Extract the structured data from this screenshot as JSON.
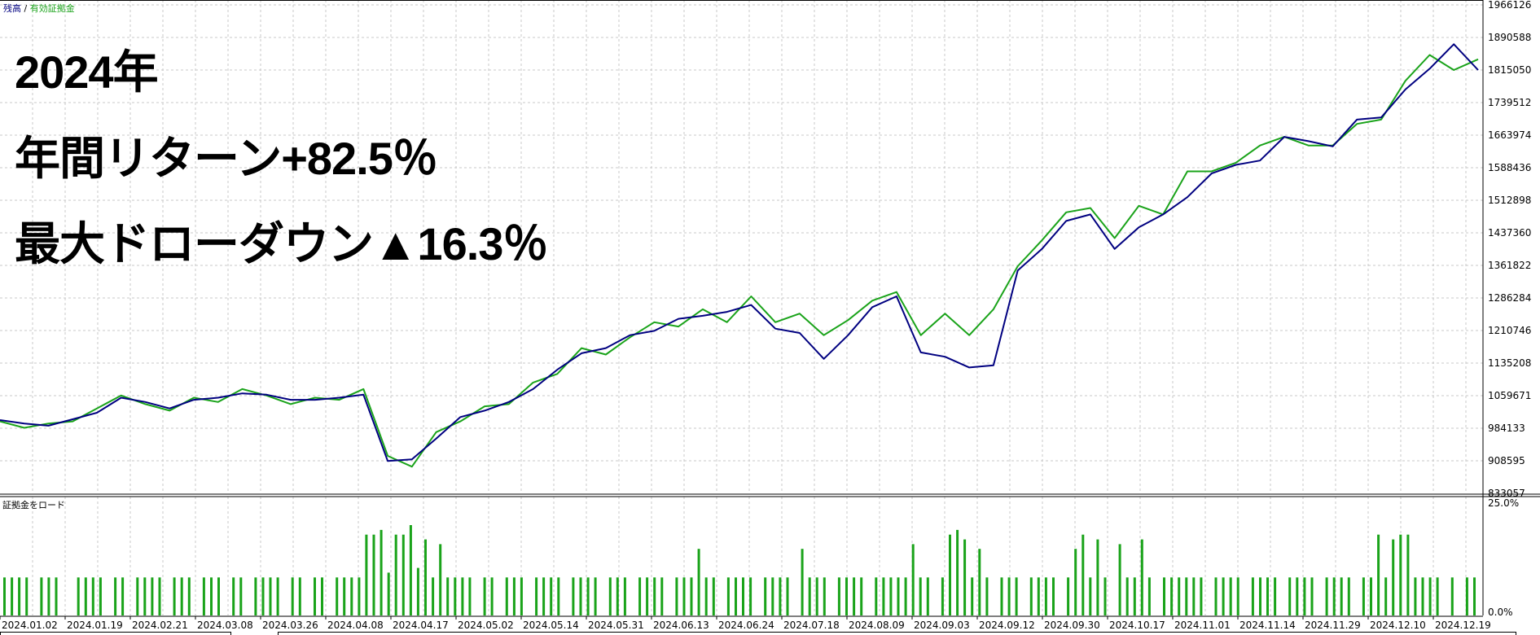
{
  "overlay": {
    "year": "2024年",
    "annual_return": "年間リターン+82.5％",
    "max_drawdown": "最大ドローダウン▲16.3％"
  },
  "legend": {
    "balance": "残高",
    "separator": "/",
    "equity": "有効証拠金"
  },
  "colors": {
    "balance": "#000080",
    "equity": "#1aa31a",
    "margin": "#1aa31a",
    "grid": "#c8c8c8"
  },
  "chart_data": [
    {
      "type": "line",
      "title": "",
      "grid": true,
      "legend_position": "top-left",
      "ylim": [
        833057,
        1966126
      ],
      "y_ticks": [
        "1966126",
        "1890588",
        "1815050",
        "1739512",
        "1663974",
        "1588436",
        "1512898",
        "1437360",
        "1361822",
        "1286284",
        "1210746",
        "1135208",
        "1059671",
        "984133",
        "908595",
        "833057"
      ],
      "x_ticks": [
        "2024.01.02",
        "2024.01.19",
        "2024.02.21",
        "2024.03.08",
        "2024.03.26",
        "2024.04.08",
        "2024.04.17",
        "2024.05.02",
        "2024.05.14",
        "2024.05.31",
        "2024.06.13",
        "2024.06.24",
        "2024.07.18",
        "2024.08.09",
        "2024.09.03",
        "2024.09.12",
        "2024.09.30",
        "2024.10.17",
        "2024.11.01",
        "2024.11.14",
        "2024.11.29",
        "2024.12.10",
        "2024.12.19"
      ],
      "series": [
        {
          "name": "残高",
          "values": [
            1003000,
            995000,
            990000,
            1005000,
            1020000,
            1055000,
            1045000,
            1030000,
            1050000,
            1055000,
            1065000,
            1062000,
            1050000,
            1050000,
            1055000,
            1062000,
            908000,
            912000,
            960000,
            1010000,
            1025000,
            1045000,
            1075000,
            1120000,
            1158000,
            1170000,
            1200000,
            1210000,
            1238000,
            1245000,
            1254000,
            1270000,
            1215000,
            1205000,
            1145000,
            1200000,
            1265000,
            1290000,
            1160000,
            1150000,
            1125000,
            1130000,
            1350000,
            1400000,
            1465000,
            1480000,
            1400000,
            1450000,
            1480000,
            1520000,
            1575000,
            1595000,
            1605000,
            1660000,
            1650000,
            1638000,
            1700000,
            1705000,
            1770000,
            1818000,
            1875000,
            1815000
          ]
        },
        {
          "name": "有効証拠金",
          "values": [
            1000000,
            985000,
            995000,
            1000000,
            1030000,
            1060000,
            1040000,
            1025000,
            1055000,
            1045000,
            1075000,
            1060000,
            1040000,
            1055000,
            1050000,
            1075000,
            920000,
            895000,
            975000,
            1000000,
            1035000,
            1040000,
            1090000,
            1110000,
            1170000,
            1155000,
            1195000,
            1230000,
            1220000,
            1260000,
            1230000,
            1290000,
            1230000,
            1250000,
            1200000,
            1235000,
            1280000,
            1300000,
            1200000,
            1250000,
            1200000,
            1260000,
            1360000,
            1420000,
            1485000,
            1495000,
            1425000,
            1500000,
            1480000,
            1580000,
            1580000,
            1600000,
            1640000,
            1660000,
            1640000,
            1640000,
            1690000,
            1700000,
            1790000,
            1850000,
            1815000,
            1840000
          ]
        }
      ]
    },
    {
      "type": "bar",
      "title": "証拠金をロード",
      "ylim": [
        0,
        25
      ],
      "y_ticks": [
        "25.0%",
        "0.0%"
      ],
      "values": [
        8,
        8,
        8,
        8,
        0,
        8,
        8,
        8,
        0,
        0,
        8,
        8,
        8,
        8,
        0,
        8,
        8,
        0,
        8,
        8,
        8,
        8,
        0,
        8,
        8,
        8,
        0,
        8,
        8,
        8,
        0,
        8,
        8,
        0,
        8,
        8,
        8,
        8,
        0,
        8,
        8,
        0,
        8,
        8,
        0,
        8,
        8,
        8,
        8,
        17,
        17,
        18,
        9,
        17,
        17,
        19,
        10,
        16,
        8,
        15,
        8,
        8,
        8,
        8,
        0,
        8,
        8,
        0,
        8,
        8,
        8,
        0,
        8,
        8,
        8,
        8,
        0,
        8,
        8,
        8,
        8,
        0,
        8,
        8,
        8,
        0,
        8,
        8,
        8,
        8,
        0,
        8,
        8,
        8,
        14,
        8,
        8,
        0,
        8,
        8,
        8,
        8,
        0,
        8,
        8,
        8,
        8,
        0,
        14,
        8,
        8,
        8,
        0,
        8,
        8,
        8,
        8,
        0,
        8,
        8,
        8,
        8,
        8,
        15,
        8,
        8,
        0,
        8,
        17,
        18,
        16,
        8,
        14,
        8,
        0,
        8,
        8,
        8,
        0,
        8,
        8,
        8,
        8,
        0,
        8,
        14,
        17,
        8,
        16,
        8,
        0,
        15,
        8,
        8,
        16,
        8,
        0,
        8,
        8,
        8,
        8,
        8,
        8,
        0,
        8,
        8,
        8,
        8,
        0,
        8,
        8,
        8,
        8,
        0,
        8,
        8,
        8,
        8,
        0,
        8,
        8,
        8,
        8,
        0,
        8,
        8,
        17,
        8,
        16,
        17,
        17,
        8,
        8,
        8,
        8,
        0,
        8,
        0,
        8,
        8
      ]
    }
  ]
}
